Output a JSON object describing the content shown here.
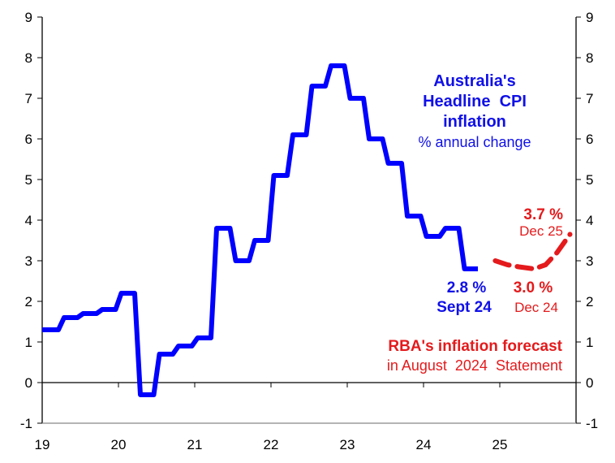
{
  "chart_data": {
    "type": "line",
    "title": "Australia's Headline CPI inflation",
    "subtitle": "% annual change",
    "title_lines": [
      "Australia's",
      "Headline  CPI",
      "inflation"
    ],
    "xlim": [
      2019,
      2026
    ],
    "ylim": [
      -1,
      9
    ],
    "x_tick_labels": [
      "19",
      "20",
      "21",
      "22",
      "23",
      "24",
      "25"
    ],
    "y_tick_labels": [
      "-1",
      "0",
      "1",
      "2",
      "3",
      "4",
      "5",
      "6",
      "7",
      "8",
      "9"
    ],
    "grid": false,
    "colors": {
      "actual": "#0000ff",
      "forecast": "#e41a1c"
    },
    "series": [
      {
        "style": "solid-step",
        "quarter_start": 2019.0,
        "values": [
          1.3,
          1.6,
          1.7,
          1.8,
          2.2,
          -0.3,
          0.7,
          0.9,
          1.1,
          3.8,
          3.0,
          3.5,
          5.1,
          6.1,
          7.3,
          7.8,
          7.0,
          6.0,
          5.4,
          4.1,
          3.6,
          3.8,
          2.8
        ]
      },
      {
        "style": "dashed",
        "points": [
          [
            2024.94,
            3.0
          ],
          [
            2025.1,
            2.9
          ],
          [
            2025.25,
            2.85
          ],
          [
            2025.45,
            2.8
          ],
          [
            2025.6,
            2.9
          ],
          [
            2025.75,
            3.2
          ],
          [
            2025.92,
            3.65
          ]
        ]
      }
    ],
    "annotations": {
      "actual_value": "2.8 %",
      "actual_date": "Sept 24",
      "dec24_value": "3.0 %",
      "dec24_date": "Dec 24",
      "dec25_value": "3.7 %",
      "dec25_date": "Dec 25",
      "forecast_line1": "RBA's inflation forecast",
      "forecast_line2": "in August  2024  Statement"
    }
  }
}
